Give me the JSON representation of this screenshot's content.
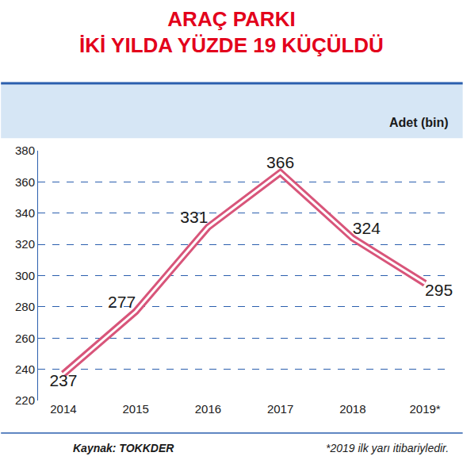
{
  "chart_data": {
    "type": "line",
    "title": "ARAÇ PARKI\nİKİ YILDA YÜZDE 19 KÜÇÜLDÜ",
    "y_label": "Adet (bin)",
    "source": "Kaynak: TOKKDER",
    "note": "*2019 ilk yarı itibariyledir.",
    "categories": [
      "2014",
      "2015",
      "2016",
      "2017",
      "2018",
      "2019*"
    ],
    "values": [
      237,
      277,
      331,
      366,
      324,
      295
    ],
    "color": "#d8557a",
    "ylim": [
      220,
      380
    ],
    "yticks": [
      220,
      240,
      260,
      280,
      300,
      320,
      340,
      360,
      380
    ],
    "grid": true,
    "data_labels": true,
    "marker": "none",
    "line_style": "solid"
  }
}
